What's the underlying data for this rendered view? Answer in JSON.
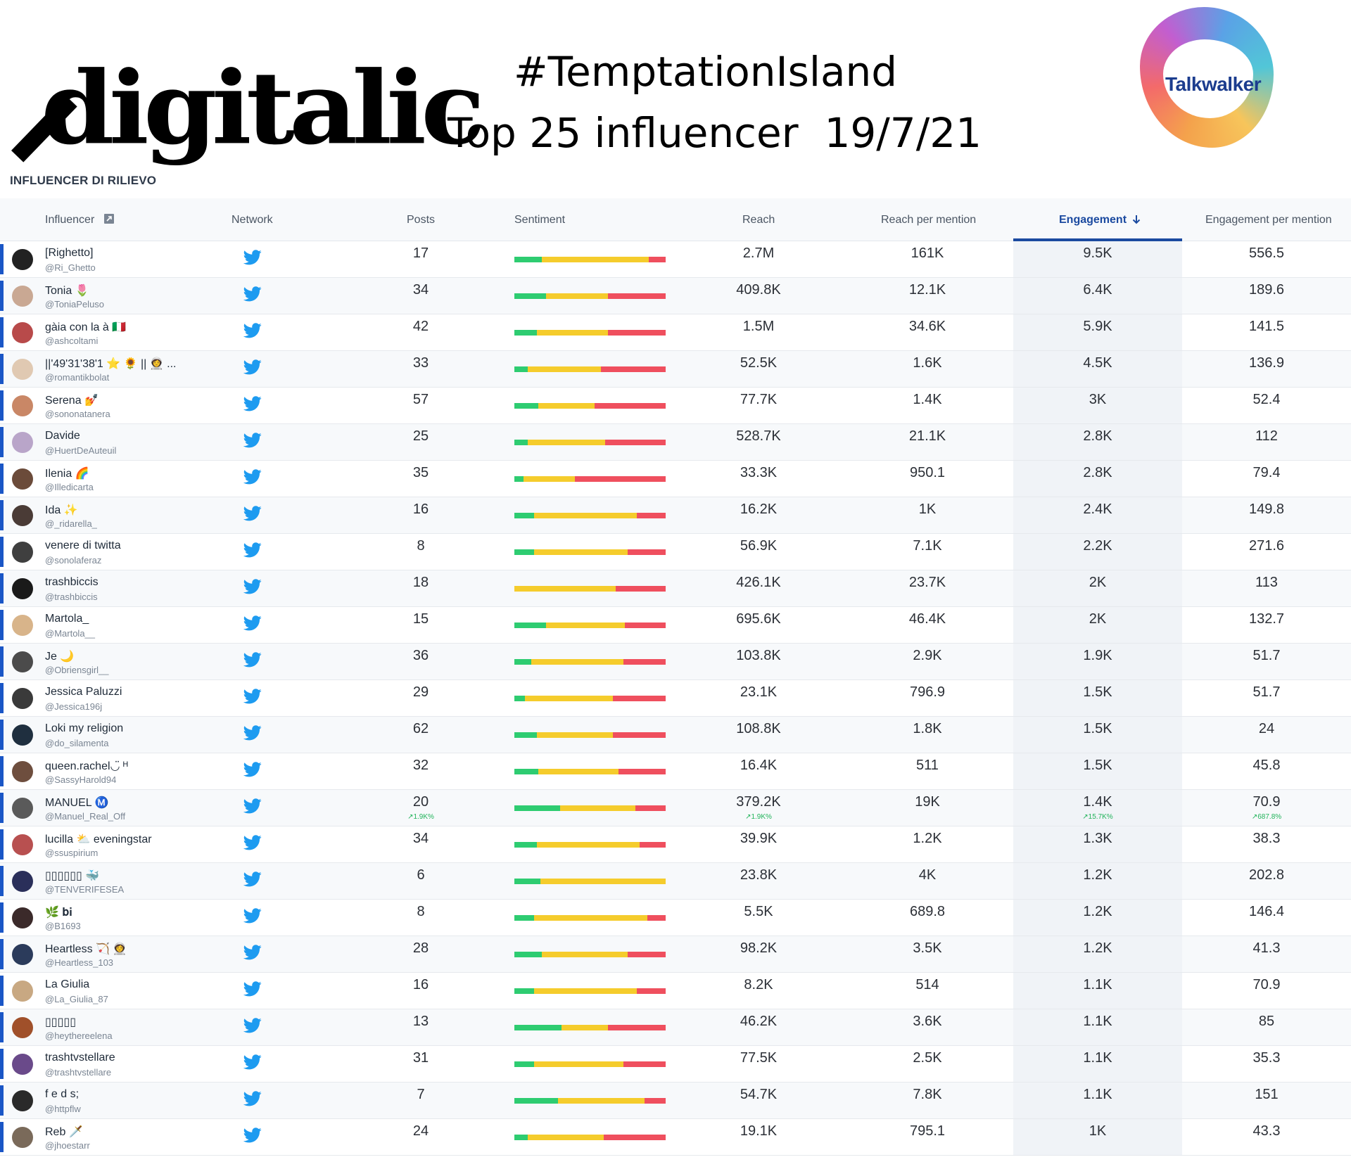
{
  "header": {
    "logo_text": "digitalic",
    "hashtag": "#TemptationIsland",
    "subtitle": "Top 25 influencer  19/7/21",
    "brand_logo_text": "Talkwalker",
    "section_title": "INFLUENCER DI RILIEVO"
  },
  "columns": {
    "influencer": "Influencer",
    "network": "Network",
    "posts": "Posts",
    "sentiment": "Sentiment",
    "reach": "Reach",
    "reach_per_mention": "Reach per mention",
    "engagement": "Engagement",
    "engagement_per_mention": "Engagement per mention"
  },
  "colors": {
    "accent": "#1b4aa0",
    "row_marker": "#1a56c6",
    "twitter": "#1d9bf0",
    "sentiment_positive": "#2ecc71",
    "sentiment_neutral": "#f5cc2c",
    "sentiment_negative": "#ef4f5e",
    "delta_up": "#21b35a"
  },
  "icons": {
    "network": "twitter-bird-icon",
    "sort": "arrow-down-icon",
    "export": "external-link-icon"
  },
  "rows": [
    {
      "name": "[Righetto]",
      "handle": "@Ri_Ghetto",
      "posts": "17",
      "reach": "2.7M",
      "rpm": "161K",
      "eng": "9.5K",
      "epm": "556.5",
      "sentiment": [
        0.18,
        0.71,
        0.11
      ],
      "avatar_color": "#222222"
    },
    {
      "name": "Tonia 🌷",
      "handle": "@ToniaPeluso",
      "posts": "34",
      "reach": "409.8K",
      "rpm": "12.1K",
      "eng": "6.4K",
      "epm": "189.6",
      "sentiment": [
        0.21,
        0.41,
        0.38
      ],
      "avatar_color": "#c9a893"
    },
    {
      "name": "gàia con la à 🇮🇹",
      "handle": "@ashcoltami",
      "posts": "42",
      "reach": "1.5M",
      "rpm": "34.6K",
      "eng": "5.9K",
      "epm": "141.5",
      "sentiment": [
        0.15,
        0.47,
        0.38
      ],
      "avatar_color": "#b84a4a"
    },
    {
      "name": "||'49'31'38'1 ⭐ 🌻 || 👩‍🚀 ...",
      "handle": "@romantikbolat",
      "posts": "33",
      "reach": "52.5K",
      "rpm": "1.6K",
      "eng": "4.5K",
      "epm": "136.9",
      "sentiment": [
        0.09,
        0.48,
        0.43
      ],
      "avatar_color": "#e0c9b2"
    },
    {
      "name": "Serena 💅",
      "handle": "@sononatanera",
      "posts": "57",
      "reach": "77.7K",
      "rpm": "1.4K",
      "eng": "3K",
      "epm": "52.4",
      "sentiment": [
        0.16,
        0.37,
        0.47
      ],
      "avatar_color": "#c98766"
    },
    {
      "name": "Davide",
      "handle": "@HuertDeAuteuil",
      "posts": "25",
      "reach": "528.7K",
      "rpm": "21.1K",
      "eng": "2.8K",
      "epm": "112",
      "sentiment": [
        0.09,
        0.51,
        0.4
      ],
      "avatar_color": "#b9a5c9"
    },
    {
      "name": "Ilenia 🌈",
      "handle": "@Illedicarta",
      "posts": "35",
      "reach": "33.3K",
      "rpm": "950.1",
      "eng": "2.8K",
      "epm": "79.4",
      "sentiment": [
        0.06,
        0.34,
        0.6
      ],
      "avatar_color": "#6b4b3a"
    },
    {
      "name": "Ida ✨",
      "handle": "@_ridarella_",
      "posts": "16",
      "reach": "16.2K",
      "rpm": "1K",
      "eng": "2.4K",
      "epm": "149.8",
      "sentiment": [
        0.13,
        0.68,
        0.19
      ],
      "avatar_color": "#4a3b36"
    },
    {
      "name": "venere di twitta",
      "handle": "@sonolaferaz",
      "posts": "8",
      "reach": "56.9K",
      "rpm": "7.1K",
      "eng": "2.2K",
      "epm": "271.6",
      "sentiment": [
        0.13,
        0.62,
        0.25
      ],
      "avatar_color": "#3f3f3f"
    },
    {
      "name": "trashbiccis",
      "handle": "@trashbiccis",
      "posts": "18",
      "reach": "426.1K",
      "rpm": "23.7K",
      "eng": "2K",
      "epm": "113",
      "sentiment": [
        0.0,
        0.67,
        0.33
      ],
      "avatar_color": "#1a1a1a"
    },
    {
      "name": "Martola_",
      "handle": "@Martola__",
      "posts": "15",
      "reach": "695.6K",
      "rpm": "46.4K",
      "eng": "2K",
      "epm": "132.7",
      "sentiment": [
        0.21,
        0.52,
        0.27
      ],
      "avatar_color": "#d8b48a"
    },
    {
      "name": "Je 🌙",
      "handle": "@Obriensgirl__",
      "posts": "36",
      "reach": "103.8K",
      "rpm": "2.9K",
      "eng": "1.9K",
      "epm": "51.7",
      "sentiment": [
        0.11,
        0.61,
        0.28
      ],
      "avatar_color": "#4b4b4b"
    },
    {
      "name": "Jessica Paluzzi",
      "handle": "@Jessica196j",
      "posts": "29",
      "reach": "23.1K",
      "rpm": "796.9",
      "eng": "1.5K",
      "epm": "51.7",
      "sentiment": [
        0.07,
        0.58,
        0.35
      ],
      "avatar_color": "#3a3a3a"
    },
    {
      "name": "Loki my religion",
      "handle": "@do_silamenta",
      "posts": "62",
      "reach": "108.8K",
      "rpm": "1.8K",
      "eng": "1.5K",
      "epm": "24",
      "sentiment": [
        0.15,
        0.5,
        0.35
      ],
      "avatar_color": "#1f2f3f"
    },
    {
      "name": "queen.rachel◡̈ ᴴ",
      "handle": "@SassyHarold94",
      "posts": "32",
      "reach": "16.4K",
      "rpm": "511",
      "eng": "1.5K",
      "epm": "45.8",
      "sentiment": [
        0.16,
        0.53,
        0.31
      ],
      "avatar_color": "#6e4e3e"
    },
    {
      "name": "MANUEL Ⓜ️",
      "handle": "@Manuel_Real_Off",
      "posts": "20",
      "reach": "379.2K",
      "rpm": "19K",
      "eng": "1.4K",
      "epm": "70.9",
      "sentiment": [
        0.3,
        0.5,
        0.2
      ],
      "avatar_color": "#5a5a5a",
      "deltas": {
        "posts": "1.9K%",
        "reach": "1.9K%",
        "eng": "15.7K%",
        "epm": "687.8%"
      }
    },
    {
      "name": "lucilla ⛅ eveningstar",
      "handle": "@ssuspirium",
      "posts": "34",
      "reach": "39.9K",
      "rpm": "1.2K",
      "eng": "1.3K",
      "epm": "38.3",
      "sentiment": [
        0.15,
        0.68,
        0.17
      ],
      "avatar_color": "#b85050"
    },
    {
      "name": "▯▯▯▯▯▯ 🐳",
      "handle": "@TENVERIFESEA",
      "posts": "6",
      "reach": "23.8K",
      "rpm": "4K",
      "eng": "1.2K",
      "epm": "202.8",
      "sentiment": [
        0.17,
        0.83,
        0.0
      ],
      "avatar_color": "#2a2f5a"
    },
    {
      "name": "🌿 𝐛𝐢",
      "handle": "@B1693",
      "posts": "8",
      "reach": "5.5K",
      "rpm": "689.8",
      "eng": "1.2K",
      "epm": "146.4",
      "sentiment": [
        0.13,
        0.75,
        0.12
      ],
      "avatar_color": "#3b2a2a"
    },
    {
      "name": "Heartless 🏹 👩‍🚀",
      "handle": "@Heartless_103",
      "posts": "28",
      "reach": "98.2K",
      "rpm": "3.5K",
      "eng": "1.2K",
      "epm": "41.3",
      "sentiment": [
        0.18,
        0.57,
        0.25
      ],
      "avatar_color": "#2b3b5b"
    },
    {
      "name": "La Giulia",
      "handle": "@La_Giulia_87",
      "posts": "16",
      "reach": "8.2K",
      "rpm": "514",
      "eng": "1.1K",
      "epm": "70.9",
      "sentiment": [
        0.13,
        0.68,
        0.19
      ],
      "avatar_color": "#c8a882"
    },
    {
      "name": "▯▯▯▯▯",
      "handle": "@heythereelena",
      "posts": "13",
      "reach": "46.2K",
      "rpm": "3.6K",
      "eng": "1.1K",
      "epm": "85",
      "sentiment": [
        0.31,
        0.31,
        0.38
      ],
      "avatar_color": "#a0502a"
    },
    {
      "name": "trashtvstellare",
      "handle": "@trashtvstellare",
      "posts": "31",
      "reach": "77.5K",
      "rpm": "2.5K",
      "eng": "1.1K",
      "epm": "35.3",
      "sentiment": [
        0.13,
        0.59,
        0.28
      ],
      "avatar_color": "#6a4a8a"
    },
    {
      "name": "f e d s;",
      "handle": "@httpflw",
      "posts": "7",
      "reach": "54.7K",
      "rpm": "7.8K",
      "eng": "1.1K",
      "epm": "151",
      "sentiment": [
        0.29,
        0.57,
        0.14
      ],
      "avatar_color": "#2a2a2a"
    },
    {
      "name": "Reb 🗡️",
      "handle": "@jhoestarr",
      "posts": "24",
      "reach": "19.1K",
      "rpm": "795.1",
      "eng": "1K",
      "epm": "43.3",
      "sentiment": [
        0.09,
        0.5,
        0.41
      ],
      "avatar_color": "#7a6a5a"
    }
  ]
}
